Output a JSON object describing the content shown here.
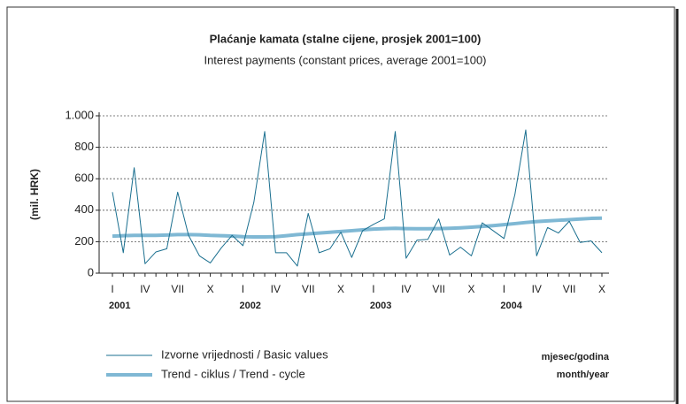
{
  "chart_data": {
    "type": "line",
    "title": "Plaćanje kamata (stalne cijene, prosjek 2001=100)",
    "subtitle": "Interest payments (constant prices, average 2001=100)",
    "ylabel": "(mil. HRK)",
    "xlabel": "mjesec/godina",
    "xlabel_en": "month/year",
    "categories": [
      "I",
      null,
      null,
      "IV",
      null,
      null,
      "VII",
      null,
      null,
      "X",
      null,
      null,
      "I",
      null,
      null,
      "IV",
      null,
      null,
      "VII",
      null,
      null,
      "X",
      null,
      null,
      "I",
      null,
      null,
      "IV",
      null,
      null,
      "VII",
      null,
      null,
      "X",
      null,
      null,
      "I",
      null,
      null,
      "IV",
      null,
      null,
      "VII",
      null,
      null,
      "X"
    ],
    "year_categories": [
      "2001",
      null,
      null,
      null,
      null,
      null,
      null,
      null,
      null,
      null,
      null,
      null,
      "2002",
      null,
      null,
      null,
      null,
      null,
      null,
      null,
      null,
      null,
      null,
      null,
      "2003",
      null,
      null,
      null,
      null,
      null,
      null,
      null,
      null,
      null,
      null,
      null,
      "2004",
      null,
      null,
      null,
      null,
      null,
      null,
      null,
      null,
      null
    ],
    "series": [
      {
        "name": "Izvorne vrijednosti / Basic values",
        "color": "#1a6f8f",
        "width": 1,
        "values": [
          515,
          130,
          670,
          60,
          135,
          155,
          515,
          240,
          110,
          65,
          160,
          240,
          175,
          450,
          900,
          130,
          130,
          45,
          380,
          130,
          155,
          260,
          100,
          270,
          310,
          345,
          900,
          95,
          210,
          215,
          345,
          115,
          165,
          110,
          320,
          270,
          220,
          500,
          910,
          110,
          290,
          255,
          330,
          195,
          205,
          130
        ]
      },
      {
        "name": "Trend - ciklus / Trend - cycle",
        "color": "#7fb8d4",
        "width": 4,
        "values": [
          235,
          238,
          240,
          240,
          240,
          242,
          245,
          245,
          244,
          240,
          238,
          236,
          232,
          230,
          230,
          232,
          238,
          245,
          250,
          255,
          260,
          265,
          270,
          275,
          280,
          283,
          285,
          283,
          282,
          282,
          283,
          285,
          288,
          292,
          297,
          302,
          308,
          315,
          322,
          328,
          332,
          336,
          340,
          344,
          348,
          350
        ]
      }
    ],
    "ylim": [
      0,
      1000
    ],
    "yticks": [
      0,
      200,
      400,
      600,
      800,
      {
        "value": 1000,
        "label": "1.000"
      }
    ],
    "grid": true
  }
}
